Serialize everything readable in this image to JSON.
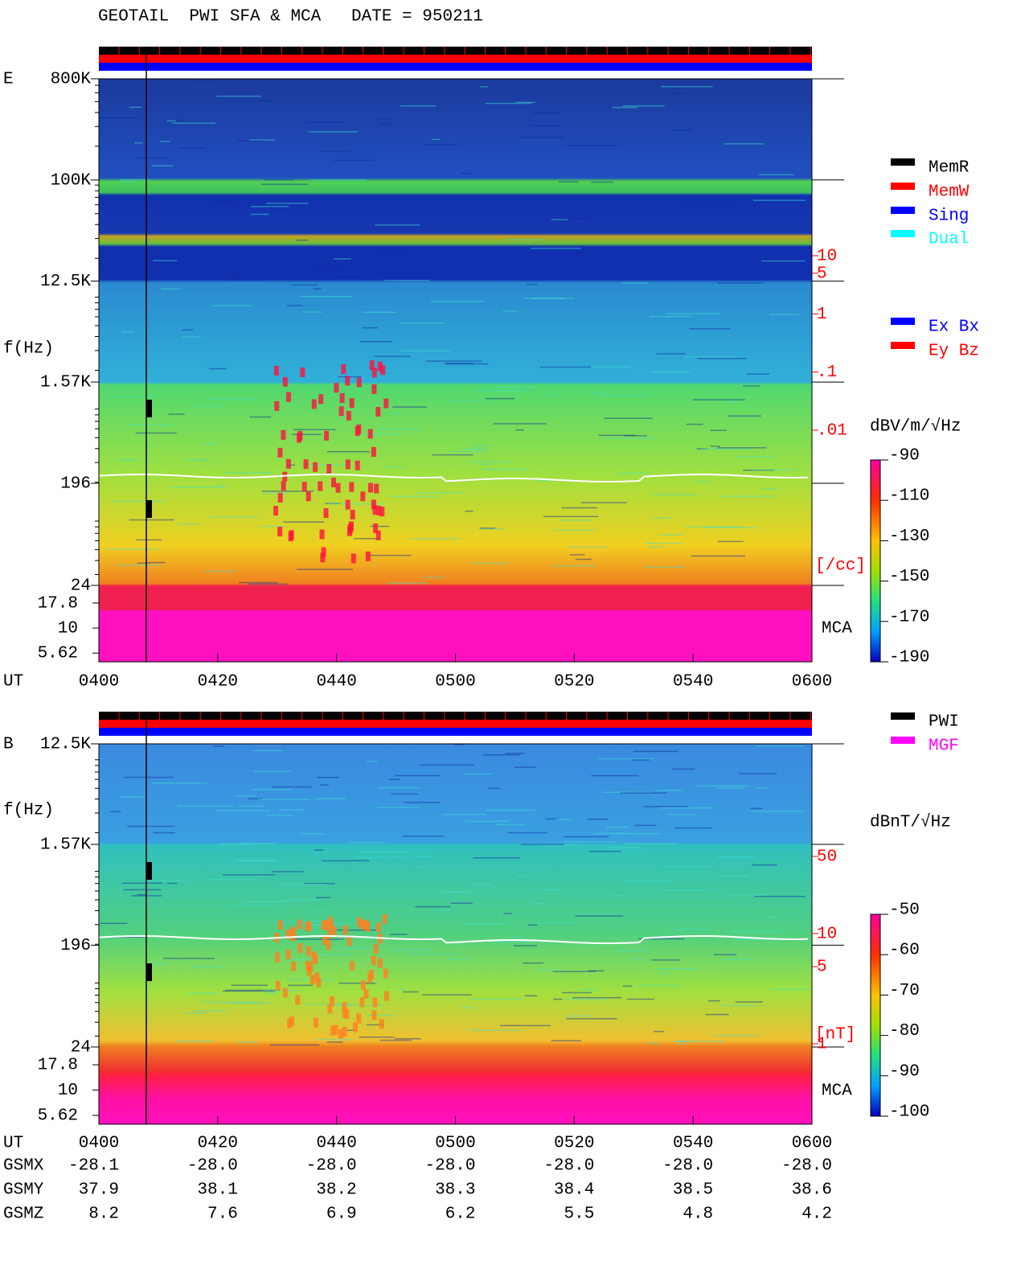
{
  "header": {
    "title": "GEOTAIL  PWI SFA & MCA   DATE = 950211"
  },
  "chart_data": [
    {
      "type": "spectrogram",
      "panel_label": "E",
      "y_label": "f(Hz)",
      "x_label": "UT",
      "log_y": true,
      "ylim": [
        24,
        800000
      ],
      "yticks": [
        {
          "value": 800000,
          "label": "800K"
        },
        {
          "value": 100000,
          "label": "100K"
        },
        {
          "value": 12500,
          "label": "12.5K"
        },
        {
          "value": 1570,
          "label": "1.57K"
        },
        196,
        24
      ],
      "mca_label": "MCA",
      "mca_ylim": [
        4.6,
        26.7
      ],
      "mca_yticks": [
        17.8,
        10,
        5.62
      ],
      "xticks": [
        "0400",
        "0420",
        "0440",
        "0500",
        "0520",
        "0540",
        "0600"
      ],
      "colorbar": {
        "label": "dBV/m/√Hz",
        "ylim": [
          -190,
          -90
        ],
        "yticks": [
          -90,
          -110,
          -130,
          -150,
          -170,
          -190
        ]
      },
      "side_scale": {
        "unit": "[/cc]",
        "ylim": [
          0.01,
          10
        ],
        "ticks": [
          10,
          5,
          1,
          {
            "value": 0.1,
            "label": ".1"
          },
          {
            "value": 0.01,
            "label": ".01"
          }
        ]
      },
      "legend": [
        {
          "name": "MemR",
          "color": "#000000"
        },
        {
          "name": "MemW",
          "color": "#ff0000"
        },
        {
          "name": "Sing",
          "color": "#0000ff"
        },
        {
          "name": "Dual",
          "color": "#00ffff"
        }
      ],
      "legend2": [
        {
          "name": "Ex Bx",
          "color": "#0000ff"
        },
        {
          "name": "Ey Bz",
          "color": "#ff0000"
        }
      ]
    },
    {
      "type": "spectrogram",
      "panel_label": "B",
      "y_label": "f(Hz)",
      "x_label": "UT",
      "log_y": true,
      "ylim": [
        24,
        12500
      ],
      "yticks": [
        {
          "value": 12500,
          "label": "12.5K"
        },
        {
          "value": 1570,
          "label": "1.57K"
        },
        196,
        24
      ],
      "mca_label": "MCA",
      "mca_ylim": [
        4.6,
        26.7
      ],
      "mca_yticks": [
        17.8,
        10,
        5.62
      ],
      "xticks": [
        "0400",
        "0420",
        "0440",
        "0500",
        "0520",
        "0540",
        "0600"
      ],
      "colorbar": {
        "label": "dBnT/√Hz",
        "ylim": [
          -100,
          -50
        ],
        "yticks": [
          -50,
          -60,
          -70,
          -80,
          -90,
          -100
        ]
      },
      "side_scale": {
        "unit": "[nT]",
        "ylim": [
          1,
          50
        ],
        "ticks": [
          50,
          10,
          5,
          1
        ]
      },
      "legend": [
        {
          "name": "PWI",
          "color": "#000000"
        },
        {
          "name": "MGF",
          "color": "#ff00ff"
        }
      ]
    }
  ],
  "orbit": {
    "rows": [
      {
        "name": "GSMX",
        "values": [
          "-28.1",
          "-28.0",
          "-28.0",
          "-28.0",
          "-28.0",
          "-28.0",
          "-28.0"
        ]
      },
      {
        "name": "GSMY",
        "values": [
          "37.9",
          "38.1",
          "38.2",
          "38.3",
          "38.4",
          "38.5",
          "38.6"
        ]
      },
      {
        "name": "GSMZ",
        "values": [
          "8.2",
          "7.6",
          "6.9",
          "6.2",
          "5.5",
          "4.8",
          "4.2"
        ]
      }
    ]
  }
}
